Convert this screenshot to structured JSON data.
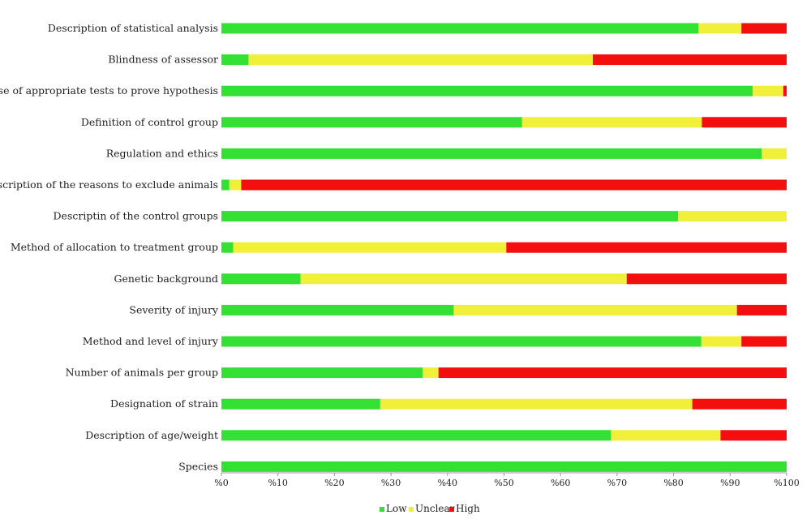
{
  "chart_data": {
    "type": "bar",
    "orientation": "horizontal",
    "stacked": true,
    "categories": [
      "Description of statistical analysis",
      "Blindness of assessor",
      "Use of appropriate tests to prove hypothesis",
      "Definition of control group",
      "Regulation and ethics",
      "Description of the reasons to exclude animals",
      "Descriptin of the control groups",
      "Method of allocation to treatment group",
      "Genetic background",
      "Severity of injury",
      "Method and level of injury",
      "Number of animals per group",
      "Designation of strain",
      "Description of age/weight",
      "Species"
    ],
    "series": [
      {
        "name": "Low",
        "color": "#33e033",
        "values": [
          84.4,
          4.8,
          94,
          53.2,
          95.6,
          1.4,
          80.8,
          2.1,
          14,
          41.1,
          84.9,
          35.6,
          28.1,
          68.9,
          100
        ]
      },
      {
        "name": "Unclear",
        "color": "#f0f03a",
        "values": [
          7.6,
          60.9,
          5.4,
          31.8,
          4.4,
          2.1,
          19.2,
          48.3,
          57.7,
          50.1,
          7.1,
          2.8,
          55.2,
          19.4,
          0
        ]
      },
      {
        "name": "High",
        "color": "#f40f0f",
        "values": [
          8.0,
          34.3,
          0.6,
          15.0,
          0,
          96.5,
          0,
          49.6,
          28.3,
          8.8,
          8.0,
          61.6,
          16.7,
          11.7,
          0
        ]
      }
    ],
    "xlim": [
      0,
      100
    ],
    "xticks": [
      "%0",
      "%10",
      "%20",
      "%30",
      "%40",
      "%50",
      "%60",
      "%70",
      "%80",
      "%90",
      "%100"
    ],
    "grid": false,
    "legend_position": "bottom"
  }
}
